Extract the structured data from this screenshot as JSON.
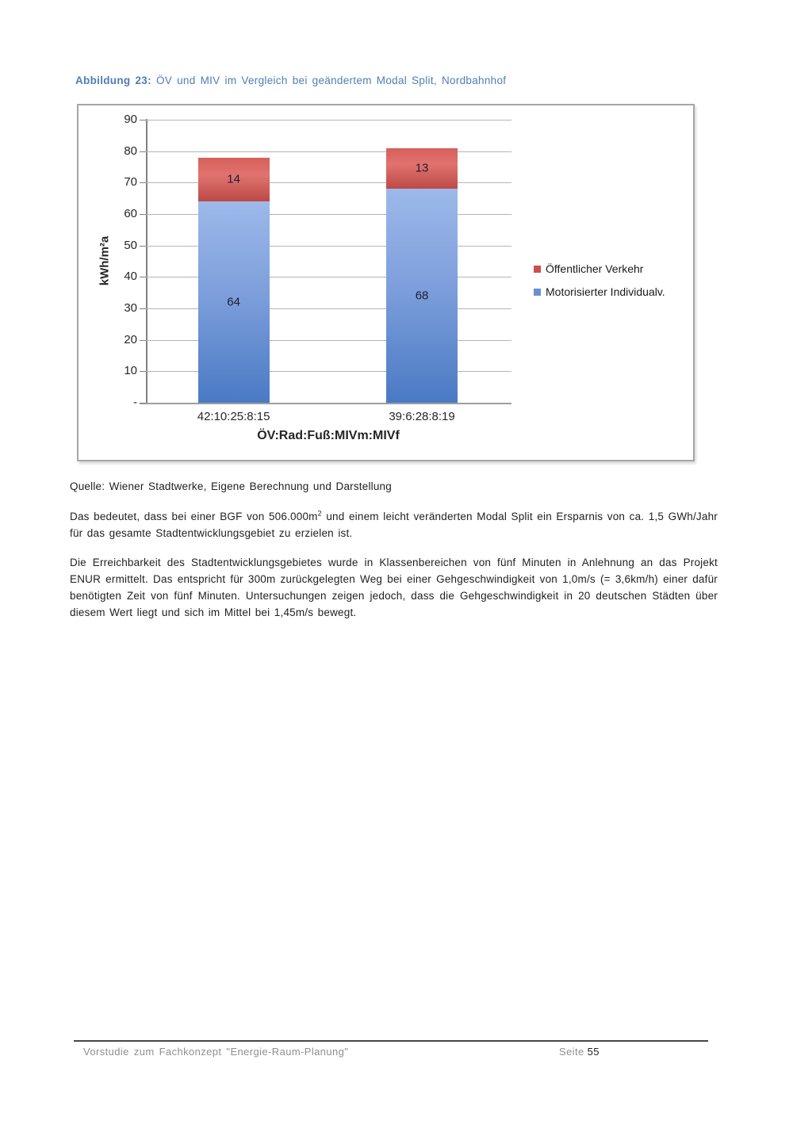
{
  "document": {
    "heading": {
      "label": "Abbildung 23:",
      "title": " ÖV und MIV im Vergleich bei geändertem Modal Split, Nordbahnhof"
    },
    "source_line": "Quelle: Wiener Stadtwerke, Eigene Berechnung und Darstellung",
    "paragraph_1": {
      "before_sup": "Das bedeutet, dass bei einer BGF von 506.000m",
      "sup": "2",
      "after_sup": " und einem leicht veränderten Modal Split ein Ersparnis von ca. 1,5 GWh/Jahr für das gesamte Stadtentwicklungsgebiet zu erzielen ist."
    },
    "paragraph_2": "Die Erreichbarkeit des Stadtentwicklungsgebietes wurde in Klassenbereichen von fünf Minuten in Anlehnung an das Projekt ENUR ermittelt. Das entspricht für 300m zurückgelegten Weg bei einer Gehgeschwindigkeit von 1,0m/s (= 3,6km/h) einer dafür benötigten Zeit von fünf Minuten. Untersuchungen zeigen jedoch, dass die Gehgeschwindigkeit in 20 deutschen Städten über diesem Wert liegt und sich im Mittel bei 1,45m/s bewegt.",
    "footer": {
      "left": "Vorstudie zum Fachkonzept \"Energie-Raum-Planung\"",
      "page_label": "Seite ",
      "page_number": "55"
    }
  },
  "chart_data": {
    "type": "bar",
    "stacked": true,
    "categories": [
      "42:10:25:8:15",
      "39:6:28:8:19"
    ],
    "series": [
      {
        "name": "Motorisierter Individualv.",
        "values": [
          64,
          68
        ],
        "color": "#6a90d2"
      },
      {
        "name": "Öffentlicher Verkehr",
        "values": [
          14,
          13
        ],
        "color": "#c9504d"
      }
    ],
    "xlabel": "ÖV:Rad:Fuß:MIVm:MIVf",
    "ylabel": "kWh/m²a",
    "ylim": [
      0,
      90
    ],
    "ytick_step": 10,
    "ytick_labels": [
      "-",
      "10",
      "20",
      "30",
      "40",
      "50",
      "60",
      "70",
      "80",
      "90"
    ],
    "legend_position": "right",
    "grid": true
  }
}
